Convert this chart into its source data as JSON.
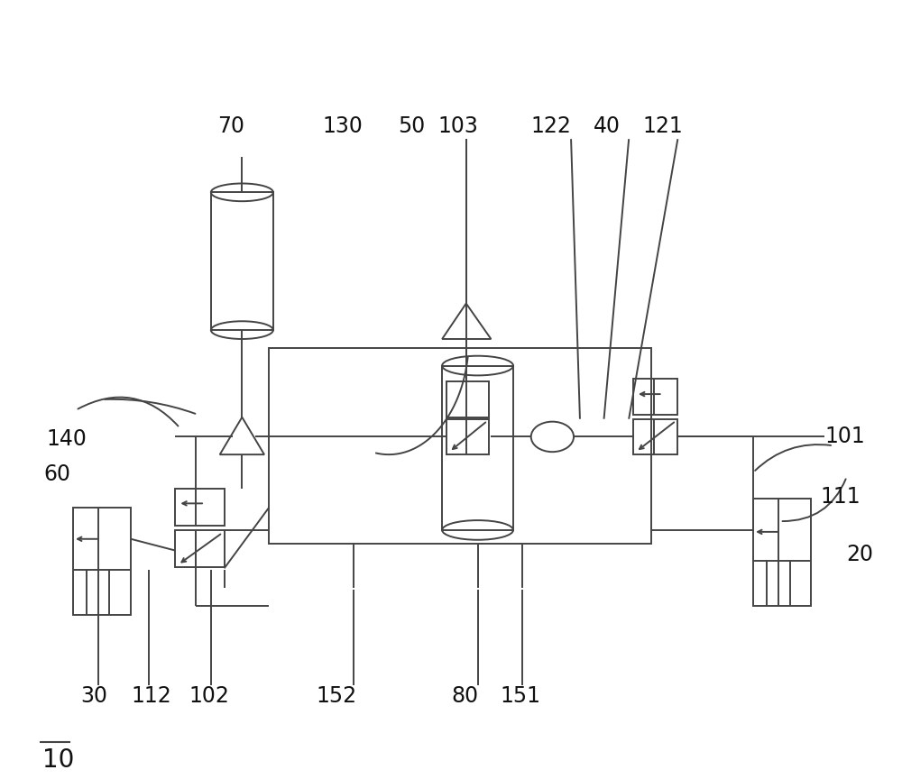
{
  "bg_color": "#ffffff",
  "line_color": "#444444",
  "label_color": "#111111",
  "label_fontsize": 17,
  "lw": 1.4
}
